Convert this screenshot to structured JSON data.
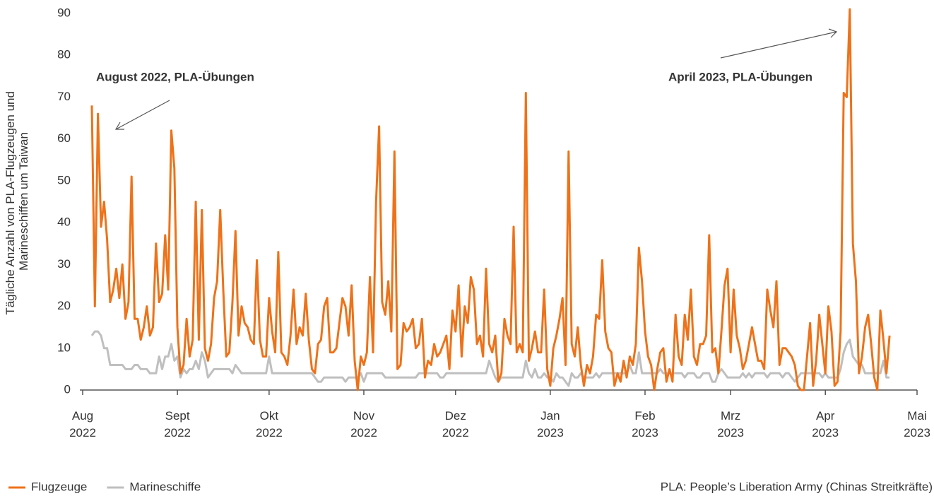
{
  "chart_data": {
    "type": "line",
    "ylabel": [
      "Tägliche Anzahl von PLA-Flugzeugen und",
      "Marineschiffen um Taiwan"
    ],
    "annotations": [
      "August 2022, PLA-Übungen",
      "April 2023, PLA-Übungen"
    ],
    "footnote": "PLA: People’s Liberation Army (Chinas Streitkräfte)",
    "xlim": [
      0,
      273
    ],
    "xticks": [
      {
        "value": 0,
        "label": [
          "Aug",
          "2022"
        ]
      },
      {
        "value": 31,
        "label": [
          "Sept",
          "2022"
        ]
      },
      {
        "value": 61,
        "label": [
          "Okt",
          "2022"
        ]
      },
      {
        "value": 92,
        "label": [
          "Nov",
          "2022"
        ]
      },
      {
        "value": 122,
        "label": [
          "Dez",
          "2022"
        ]
      },
      {
        "value": 153,
        "label": [
          "Jan",
          "2023"
        ]
      },
      {
        "value": 184,
        "label": [
          "Feb",
          "2023"
        ]
      },
      {
        "value": 212,
        "label": [
          "Mrz",
          "2023"
        ]
      },
      {
        "value": 243,
        "label": [
          "Apr",
          "2023"
        ]
      },
      {
        "value": 273,
        "label": [
          "Mai",
          "2023"
        ]
      }
    ],
    "ylim": [
      0,
      90
    ],
    "yticks": [
      0,
      10,
      20,
      30,
      40,
      50,
      60,
      70,
      80,
      90
    ],
    "grid": false,
    "x": [
      3,
      4,
      5,
      6,
      7,
      8,
      9,
      10,
      11,
      12,
      13,
      14,
      15,
      16,
      17,
      18,
      19,
      20,
      21,
      22,
      23,
      24,
      25,
      26,
      27,
      28,
      29,
      30,
      31,
      32,
      33,
      34,
      35,
      36,
      37,
      38,
      39,
      40,
      41,
      42,
      43,
      44,
      45,
      46,
      47,
      48,
      49,
      50,
      51,
      52,
      53,
      54,
      55,
      56,
      57,
      58,
      59,
      60,
      61,
      62,
      63,
      64,
      65,
      66,
      67,
      68,
      69,
      70,
      71,
      72,
      73,
      74,
      75,
      76,
      77,
      78,
      79,
      80,
      81,
      82,
      83,
      84,
      85,
      86,
      87,
      88,
      89,
      90,
      91,
      92,
      93,
      94,
      95,
      96,
      97,
      98,
      99,
      100,
      101,
      102,
      103,
      104,
      105,
      106,
      107,
      108,
      109,
      110,
      111,
      112,
      113,
      114,
      115,
      116,
      117,
      118,
      119,
      120,
      121,
      122,
      123,
      124,
      125,
      126,
      127,
      128,
      129,
      130,
      131,
      132,
      133,
      134,
      135,
      136,
      137,
      138,
      139,
      140,
      141,
      142,
      143,
      144,
      145,
      146,
      147,
      148,
      149,
      150,
      151,
      152,
      153,
      154,
      155,
      156,
      157,
      158,
      159,
      160,
      161,
      162,
      163,
      164,
      165,
      166,
      167,
      168,
      169,
      170,
      171,
      172,
      173,
      174,
      175,
      176,
      177,
      178,
      179,
      180,
      181,
      182,
      183,
      184,
      185,
      186,
      187,
      188,
      189,
      190,
      191,
      192,
      193,
      194,
      195,
      196,
      197,
      198,
      199,
      200,
      201,
      202,
      203,
      204,
      205,
      206,
      207,
      208,
      209,
      210,
      211,
      212,
      213,
      214,
      215,
      216,
      217,
      218,
      219,
      220,
      221,
      222,
      223,
      224,
      225,
      226,
      227,
      228,
      229,
      230,
      231,
      232,
      233,
      234,
      235,
      236,
      237,
      238,
      239,
      240,
      241,
      242,
      243,
      244,
      245,
      246,
      247,
      248,
      249,
      250,
      251,
      252,
      253,
      254,
      255,
      256,
      257,
      258,
      259,
      260,
      261,
      262,
      263,
      264
    ],
    "series": [
      {
        "name": "Flugzeuge",
        "color": "#ee7219",
        "values": [
          68,
          20,
          66,
          39,
          45,
          36,
          21,
          24,
          29,
          22,
          30,
          17,
          21,
          51,
          17,
          17,
          12,
          15,
          20,
          13,
          15,
          35,
          21,
          23,
          37,
          24,
          62,
          53,
          15,
          4,
          6,
          17,
          8,
          12,
          45,
          12,
          43,
          10,
          7,
          11,
          22,
          26,
          43,
          24,
          8,
          9,
          21,
          38,
          13,
          20,
          16,
          15,
          12,
          11,
          31,
          12,
          8,
          8,
          22,
          14,
          9,
          33,
          9,
          8,
          6,
          13,
          24,
          11,
          15,
          13,
          23,
          12,
          5,
          4,
          11,
          12,
          20,
          22,
          9,
          9,
          10,
          16,
          22,
          20,
          13,
          25,
          7,
          0,
          8,
          6,
          9,
          27,
          9,
          45,
          63,
          21,
          18,
          26,
          14,
          57,
          5,
          6,
          16,
          14,
          15,
          17,
          10,
          11,
          17,
          3,
          7,
          6,
          11,
          8,
          9,
          11,
          13,
          5,
          19,
          14,
          25,
          8,
          20,
          16,
          27,
          24,
          11,
          13,
          8,
          29,
          11,
          9,
          13,
          2,
          4,
          17,
          13,
          11,
          39,
          9,
          11,
          9,
          71,
          7,
          10,
          14,
          9,
          9,
          24,
          5,
          1,
          10,
          13,
          17,
          22,
          6,
          57,
          11,
          8,
          15,
          6,
          1,
          6,
          4,
          8,
          18,
          17,
          31,
          14,
          10,
          9,
          1,
          4,
          2,
          7,
          3,
          8,
          6,
          11,
          34,
          26,
          14,
          8,
          6,
          0,
          5,
          9,
          10,
          2,
          5,
          2,
          18,
          8,
          6,
          18,
          12,
          24,
          8,
          6,
          11,
          11,
          13,
          37,
          9,
          10,
          4,
          14,
          25,
          29,
          9,
          24,
          13,
          10,
          5,
          7,
          11,
          15,
          11,
          7,
          7,
          5,
          24,
          19,
          15,
          26,
          6,
          10,
          10,
          9,
          8,
          6,
          1,
          0,
          0,
          8,
          16,
          1,
          7,
          18,
          11,
          4,
          20,
          14,
          1,
          2,
          14,
          71,
          70,
          91,
          35,
          26,
          4,
          8,
          15,
          18,
          11,
          3,
          0,
          19,
          12,
          4,
          13
        ]
      },
      {
        "name": "Marineschiffe",
        "color": "#bfbfbf",
        "values": [
          13,
          14,
          14,
          13,
          10,
          10,
          6,
          6,
          6,
          6,
          6,
          5,
          5,
          5,
          6,
          6,
          5,
          5,
          5,
          4,
          4,
          4,
          8,
          5,
          8,
          8,
          11,
          7,
          8,
          3,
          5,
          4,
          5,
          5,
          7,
          5,
          9,
          7,
          3,
          4,
          5,
          5,
          5,
          5,
          5,
          5,
          4,
          6,
          5,
          4,
          4,
          4,
          4,
          4,
          4,
          4,
          4,
          4,
          8,
          4,
          4,
          4,
          4,
          4,
          4,
          4,
          4,
          4,
          4,
          4,
          4,
          4,
          4,
          3,
          2,
          2,
          3,
          3,
          3,
          3,
          3,
          3,
          3,
          2,
          3,
          3,
          3,
          3,
          4,
          2,
          4,
          4,
          4,
          4,
          4,
          4,
          3,
          3,
          3,
          3,
          3,
          3,
          3,
          3,
          3,
          3,
          3,
          4,
          4,
          4,
          4,
          4,
          4,
          4,
          3,
          3,
          4,
          4,
          4,
          4,
          4,
          4,
          4,
          4,
          4,
          4,
          4,
          4,
          4,
          4,
          7,
          5,
          3,
          2,
          3,
          3,
          3,
          3,
          3,
          3,
          3,
          3,
          7,
          4,
          3,
          5,
          3,
          3,
          4,
          3,
          3,
          2,
          4,
          3,
          3,
          2,
          1,
          4,
          3,
          3,
          4,
          3,
          3,
          3,
          3,
          4,
          3,
          4,
          4,
          4,
          4,
          4,
          4,
          4,
          4,
          4,
          6,
          4,
          4,
          9,
          4,
          4,
          4,
          4,
          4,
          4,
          5,
          4,
          4,
          4,
          4,
          4,
          4,
          4,
          3,
          4,
          4,
          4,
          3,
          3,
          4,
          4,
          4,
          2,
          2,
          4,
          5,
          4,
          3,
          3,
          3,
          3,
          3,
          4,
          3,
          4,
          3,
          4,
          4,
          4,
          4,
          3,
          4,
          4,
          4,
          4,
          3,
          4,
          4,
          3,
          2,
          3,
          4,
          4,
          4,
          4,
          4,
          4,
          4,
          3,
          4,
          3,
          3,
          3,
          3,
          5,
          9,
          11,
          12,
          8,
          7,
          6,
          6,
          4,
          4,
          4,
          4,
          4,
          4,
          7,
          3,
          3
        ]
      }
    ]
  }
}
